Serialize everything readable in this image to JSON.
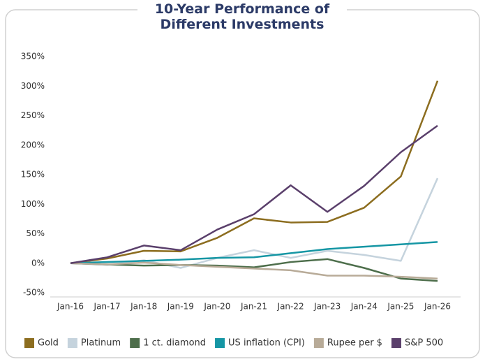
{
  "chart_data": {
    "type": "line",
    "title": "10-Year Performance of Different Investments",
    "categories": [
      "Jan-16",
      "Jan-17",
      "Jan-18",
      "Jan-19",
      "Jan-20",
      "Jan-21",
      "Jan-22",
      "Jan-23",
      "Jan-24",
      "Jan-25",
      "Jan-26"
    ],
    "series": [
      {
        "name": "Gold",
        "color": "#8c6d1f",
        "values": [
          0,
          8,
          21,
          20,
          43,
          76,
          69,
          70,
          94,
          147,
          309
        ]
      },
      {
        "name": "Platinum",
        "color": "#c5d3dd",
        "values": [
          0,
          -3,
          5,
          -8,
          9,
          22,
          9,
          21,
          14,
          4,
          144
        ]
      },
      {
        "name": "1 ct. diamond",
        "color": "#4d6e4b",
        "values": [
          0,
          -2,
          -4,
          -3,
          -4,
          -7,
          2,
          7,
          -8,
          -26,
          -30
        ]
      },
      {
        "name": "US inflation (CPI)",
        "color": "#1596a4",
        "values": [
          0,
          2,
          4,
          6,
          9,
          10,
          17,
          24,
          28,
          32,
          36
        ]
      },
      {
        "name": "Rupee per $",
        "color": "#b8ab98",
        "values": [
          0,
          -2,
          1,
          -3,
          -6,
          -9,
          -12,
          -21,
          -21,
          -23,
          -26
        ]
      },
      {
        "name": "S&P 500",
        "color": "#5a3f6b",
        "values": [
          0,
          10,
          30,
          22,
          57,
          83,
          132,
          87,
          131,
          188,
          233
        ]
      }
    ],
    "ylim": [
      -50,
      350
    ],
    "yticks": [
      {
        "value": -50,
        "label": "-50%"
      },
      {
        "value": 0,
        "label": "0%"
      },
      {
        "value": 50,
        "label": "50%"
      },
      {
        "value": 100,
        "label": "100%"
      },
      {
        "value": 150,
        "label": "150%"
      },
      {
        "value": 200,
        "label": "200%"
      },
      {
        "value": 250,
        "label": "250%"
      },
      {
        "value": 300,
        "label": "300%"
      },
      {
        "value": 350,
        "label": "350%"
      }
    ],
    "grid": false,
    "legend": "bottom"
  }
}
